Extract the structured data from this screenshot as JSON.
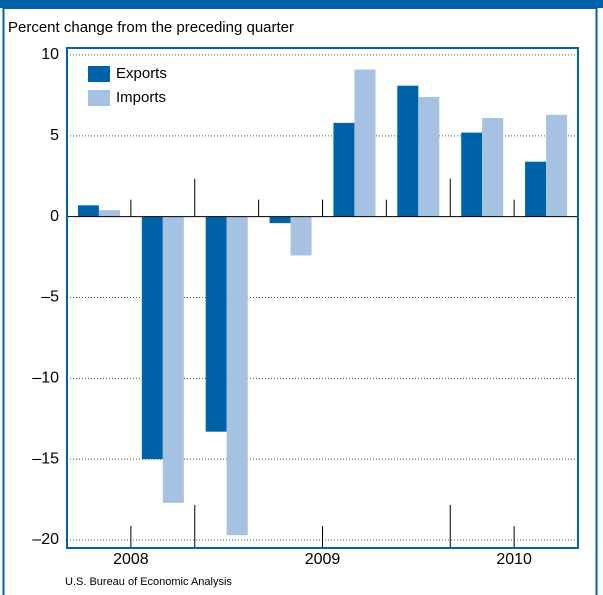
{
  "chart_data": {
    "type": "bar",
    "subtitle": "Percent change from the preceding quarter",
    "categories": [
      null,
      null,
      null,
      null,
      null,
      null,
      null,
      null
    ],
    "year_groups": [
      {
        "label": "2008",
        "count": 2
      },
      {
        "label": "2009",
        "count": 4
      },
      {
        "label": "2010",
        "count": 2
      }
    ],
    "series": [
      {
        "name": "Exports",
        "color": "#0062a8",
        "values": [
          0.7,
          -15,
          -13.3,
          -0.4,
          5.8,
          8.1,
          5.2,
          3.4
        ]
      },
      {
        "name": "Imports",
        "color": "#a6c2e2",
        "values": [
          0.4,
          -17.7,
          -19.7,
          -2.4,
          9.1,
          7.4,
          6.1,
          6.3
        ]
      }
    ],
    "ylim": [
      -20,
      10
    ],
    "yticks": [
      10,
      5,
      0,
      {
        "value": -5,
        "label": "–5"
      },
      {
        "value": -10,
        "label": "–10"
      },
      {
        "value": -15,
        "label": "–15"
      },
      {
        "value": -20,
        "label": "–20"
      }
    ],
    "grid": true,
    "legend": "upper left",
    "source": "U.S. Bureau of Economic Analysis"
  }
}
